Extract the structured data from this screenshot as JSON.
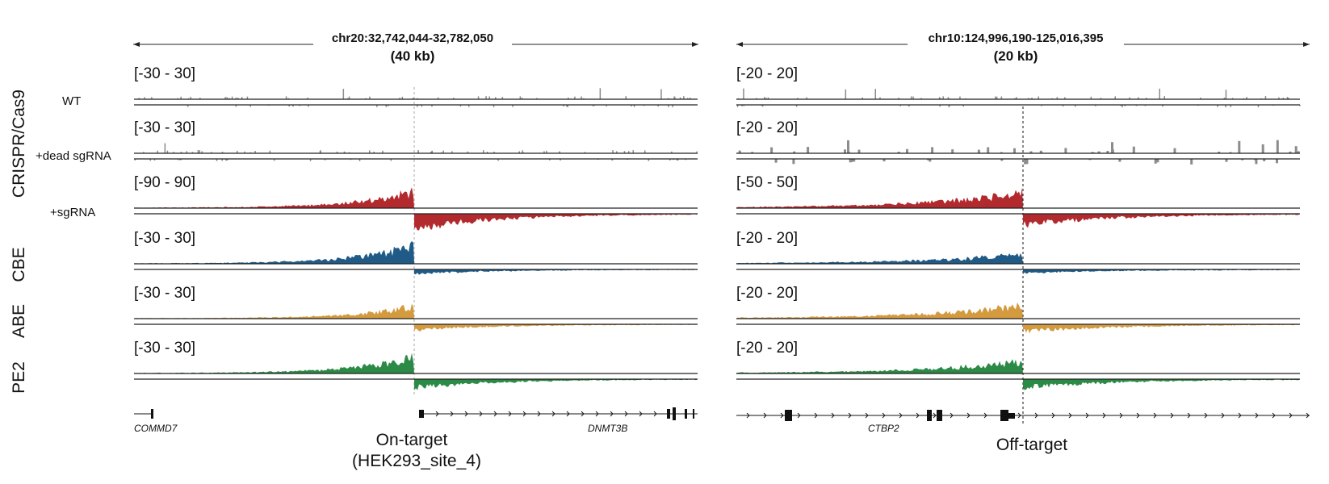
{
  "colors": {
    "wt": "#8c8c8c",
    "dead": "#8c8c8c",
    "sgrna": "#b22a2e",
    "cbe": "#1f5b86",
    "abe": "#d39a3e",
    "pe2": "#2b8a45",
    "axis": "#222222"
  },
  "groups": [
    {
      "label": "CRISPR/Cas9",
      "rows": [
        "wt",
        "dead",
        "sgrna"
      ]
    },
    {
      "label": "CBE",
      "rows": [
        "cbe"
      ]
    },
    {
      "label": "ABE",
      "rows": [
        "abe"
      ]
    },
    {
      "label": "PE2",
      "rows": [
        "pe2"
      ]
    }
  ],
  "tracks": [
    {
      "id": "wt",
      "label": "WT",
      "color_key": "wt",
      "shape": "sparse",
      "range_left": "[-30 - 30]",
      "range_right": "[-20 - 20]"
    },
    {
      "id": "dead",
      "label": "+dead sgRNA",
      "color_key": "dead",
      "shape": "sparse",
      "range_left": "[-30 - 30]",
      "range_right": "[-20 - 20]"
    },
    {
      "id": "sgrna",
      "label": "+sgRNA",
      "color_key": "sgrna",
      "shape": "peak",
      "range_left": "[-90 - 90]",
      "range_right": "[-50 - 50]"
    },
    {
      "id": "cbe",
      "label": "",
      "color_key": "cbe",
      "shape": "peak",
      "range_left": "[-30 - 30]",
      "range_right": "[-20 - 20]"
    },
    {
      "id": "abe",
      "label": "",
      "color_key": "abe",
      "shape": "peak",
      "range_left": "[-30 - 30]",
      "range_right": "[-20 - 20]"
    },
    {
      "id": "pe2",
      "label": "",
      "color_key": "pe2",
      "shape": "peak",
      "range_left": "[-30 - 30]",
      "range_right": "[-20 - 20]"
    }
  ],
  "panels": [
    {
      "id": "left",
      "coordinates": "chr20:32,742,044-32,782,050",
      "size": "(40 kb)",
      "genes": [
        "COMMD7",
        "DNMT3B"
      ],
      "target_label": "On-target",
      "target_sublabel": "(HEK293_site_4)"
    },
    {
      "id": "right",
      "coordinates": "chr10:124,996,190-125,016,395",
      "size": "(20 kb)",
      "genes": [
        "CTBP2"
      ],
      "target_label": "Off-target",
      "target_sublabel": ""
    }
  ]
}
